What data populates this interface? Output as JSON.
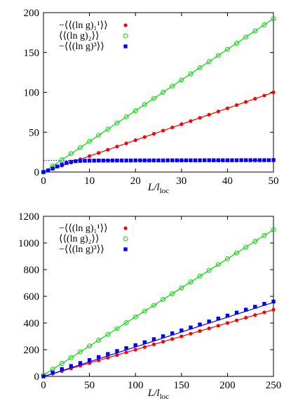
{
  "chart_data": [
    {
      "type": "scatter",
      "xlabel": "L/l_loc",
      "x_ticks": [
        0,
        10,
        20,
        30,
        40,
        50
      ],
      "y_ticks": [
        0,
        50,
        100,
        150,
        200
      ],
      "xlim": [
        0,
        50
      ],
      "ylim": [
        0,
        200
      ],
      "grid": false,
      "legend_position": "top-left",
      "reference_lines": [
        {
          "y": 14.7,
          "style": "dotted",
          "color": "#0000ff"
        }
      ],
      "series": [
        {
          "name": "−⟨⟨(ln g)₁¹⟩⟩",
          "color": "#ff0000",
          "marker": "filled-circle",
          "x": [
            0,
            2,
            4,
            6,
            8,
            10,
            12,
            14,
            16,
            18,
            20,
            22,
            24,
            26,
            28,
            30,
            32,
            34,
            36,
            38,
            40,
            42,
            44,
            46,
            48,
            50
          ],
          "y": [
            0,
            4,
            8,
            12,
            16,
            20,
            24,
            28,
            32,
            36,
            40,
            44,
            48,
            52,
            56,
            60,
            64,
            68,
            72,
            76,
            80,
            84,
            88,
            92,
            96,
            100
          ],
          "fit_line": {
            "x": [
              0,
              50
            ],
            "y": [
              0,
              100
            ]
          }
        },
        {
          "name": "⟨⟨(ln g)₂⟩⟩",
          "color": "#00dd00",
          "marker": "open-circle",
          "x": [
            0,
            2,
            4,
            6,
            8,
            10,
            12,
            14,
            16,
            18,
            20,
            22,
            24,
            26,
            28,
            30,
            32,
            34,
            36,
            38,
            40,
            42,
            44,
            46,
            48,
            50
          ],
          "y": [
            0,
            7.7,
            15.4,
            23.1,
            30.8,
            38.5,
            46.2,
            53.9,
            61.6,
            69.3,
            77,
            84.7,
            92.4,
            100.1,
            107.8,
            115.5,
            123.2,
            130.9,
            138.6,
            146.3,
            154,
            161.7,
            169.4,
            177.1,
            184.8,
            192.5
          ],
          "fit_line": {
            "x": [
              0,
              50
            ],
            "y": [
              0,
              192.5
            ]
          }
        },
        {
          "name": "−⟨⟨(ln g)³⟩⟩",
          "color": "#0000ff",
          "marker": "filled-square",
          "x": [
            0,
            1,
            2,
            3,
            4,
            5,
            6,
            7,
            8,
            9,
            10,
            11,
            12,
            13,
            14,
            15,
            16,
            17,
            18,
            19,
            20,
            21,
            22,
            23,
            24,
            25,
            26,
            27,
            28,
            29,
            30,
            31,
            32,
            33,
            34,
            35,
            36,
            37,
            38,
            39,
            40,
            41,
            42,
            43,
            44,
            45,
            46,
            47,
            48,
            49,
            50
          ],
          "y": [
            0,
            2,
            4.5,
            7,
            9.5,
            11.5,
            12.8,
            13.6,
            14,
            14.2,
            14.3,
            14.3,
            14.4,
            14.4,
            14.4,
            14.5,
            14.5,
            14.5,
            14.5,
            14.5,
            14.6,
            14.6,
            14.6,
            14.6,
            14.6,
            14.6,
            14.6,
            14.7,
            14.7,
            14.7,
            14.7,
            14.7,
            14.7,
            14.7,
            14.7,
            14.8,
            14.8,
            14.8,
            14.8,
            14.8,
            14.8,
            14.8,
            14.8,
            14.9,
            14.9,
            14.9,
            14.9,
            14.9,
            14.9,
            14.9,
            15
          ]
        }
      ]
    },
    {
      "type": "scatter",
      "xlabel": "L/l_loc",
      "x_ticks": [
        0,
        50,
        100,
        150,
        200,
        250
      ],
      "y_ticks": [
        0,
        200,
        400,
        600,
        800,
        1000,
        1200
      ],
      "xlim": [
        0,
        250
      ],
      "ylim": [
        0,
        1200
      ],
      "grid": false,
      "legend_position": "top-left",
      "series": [
        {
          "name": "−⟨⟨(ln g)₁¹⟩⟩",
          "color": "#ff0000",
          "marker": "filled-circle",
          "x": [
            0,
            10,
            20,
            30,
            40,
            50,
            60,
            70,
            80,
            90,
            100,
            110,
            120,
            130,
            140,
            150,
            160,
            170,
            180,
            190,
            200,
            210,
            220,
            230,
            240,
            250
          ],
          "y": [
            0,
            20,
            40,
            60,
            80,
            100,
            120,
            140,
            160,
            180,
            200,
            220,
            240,
            260,
            280,
            300,
            320,
            340,
            360,
            380,
            400,
            420,
            440,
            460,
            480,
            500
          ],
          "fit_line": {
            "x": [
              0,
              250
            ],
            "y": [
              0,
              500
            ]
          }
        },
        {
          "name": "⟨⟨(ln g)₂⟩⟩",
          "color": "#00dd00",
          "marker": "open-circle",
          "x": [
            0,
            10,
            20,
            30,
            40,
            50,
            60,
            70,
            80,
            90,
            100,
            110,
            120,
            130,
            140,
            150,
            160,
            170,
            180,
            190,
            200,
            210,
            220,
            230,
            240,
            250
          ],
          "y": [
            10,
            53.6,
            97.2,
            140.8,
            184.4,
            228,
            271.6,
            315.2,
            358.8,
            402.4,
            446,
            489.6,
            533.2,
            576.8,
            620.4,
            664,
            707.6,
            751.2,
            794.8,
            838.4,
            882,
            925.6,
            969.2,
            1012.8,
            1056.4,
            1100
          ],
          "fit_line": {
            "x": [
              0,
              250
            ],
            "y": [
              10,
              1100
            ]
          }
        },
        {
          "name": "−⟨⟨(ln g)³⟩⟩",
          "color": "#0000ff",
          "marker": "filled-square",
          "x": [
            0,
            10,
            20,
            30,
            40,
            50,
            60,
            70,
            80,
            90,
            100,
            110,
            120,
            130,
            140,
            150,
            160,
            170,
            180,
            190,
            200,
            210,
            220,
            230,
            240,
            250
          ],
          "y": [
            0,
            30,
            55,
            78,
            100,
            123,
            145,
            168,
            190,
            212,
            234,
            256,
            279,
            301,
            323,
            345,
            367,
            389,
            412,
            434,
            456,
            478,
            500,
            522,
            544,
            561
          ],
          "fit_line": {
            "x": [
              0,
              250
            ],
            "y": [
              -2,
              555
            ]
          }
        }
      ]
    }
  ]
}
